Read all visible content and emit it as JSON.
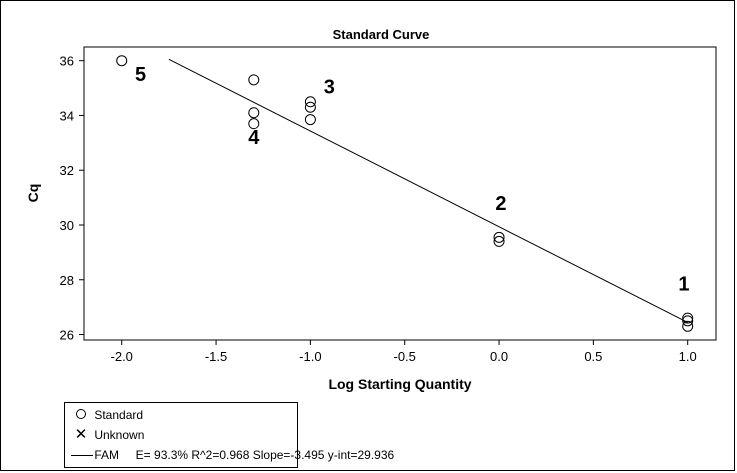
{
  "chart_data": {
    "type": "scatter",
    "title": "Standard Curve",
    "xlabel": "Log Starting Quantity",
    "ylabel": "Cq",
    "xlim": [
      -2.2,
      1.15
    ],
    "ylim": [
      25.8,
      36.5
    ],
    "xticks": [
      "-2.0",
      "-1.5",
      "-1.0",
      "-0.5",
      "0.0",
      "0.5",
      "1.0"
    ],
    "yticks": [
      "26",
      "28",
      "30",
      "32",
      "34",
      "36"
    ],
    "series": [
      {
        "name": "Standard",
        "marker": "circle",
        "points": [
          {
            "x": -2.0,
            "y": 36.0
          },
          {
            "x": -1.3,
            "y": 35.3
          },
          {
            "x": -1.3,
            "y": 34.1
          },
          {
            "x": -1.3,
            "y": 33.7
          },
          {
            "x": -1.0,
            "y": 34.5
          },
          {
            "x": -1.0,
            "y": 34.3
          },
          {
            "x": -1.0,
            "y": 33.85
          },
          {
            "x": 0.0,
            "y": 29.55
          },
          {
            "x": 0.0,
            "y": 29.4
          },
          {
            "x": 1.0,
            "y": 26.6
          },
          {
            "x": 1.0,
            "y": 26.5
          },
          {
            "x": 1.0,
            "y": 26.3
          }
        ]
      }
    ],
    "fit_line": {
      "name": "FAM",
      "slope": -3.495,
      "intercept": 29.936,
      "x_range": [
        -1.75,
        1.0
      ]
    },
    "point_labels": [
      {
        "text": "1",
        "x": 0.98,
        "y": 27.6
      },
      {
        "text": "2",
        "x": 0.01,
        "y": 30.55
      },
      {
        "text": "3",
        "x": -0.9,
        "y": 34.8
      },
      {
        "text": "4",
        "x": -1.3,
        "y": 32.95
      },
      {
        "text": "5",
        "x": -1.9,
        "y": 35.25
      }
    ],
    "legend": {
      "placement": "bottom-left",
      "entries": [
        {
          "symbol": "circle",
          "label": "Standard"
        },
        {
          "symbol": "x",
          "label": "Unknown"
        },
        {
          "symbol": "line",
          "label": "FAM     E= 93.3% R^2=0.968 Slope=-3.495 y-int=29.936"
        }
      ]
    }
  }
}
